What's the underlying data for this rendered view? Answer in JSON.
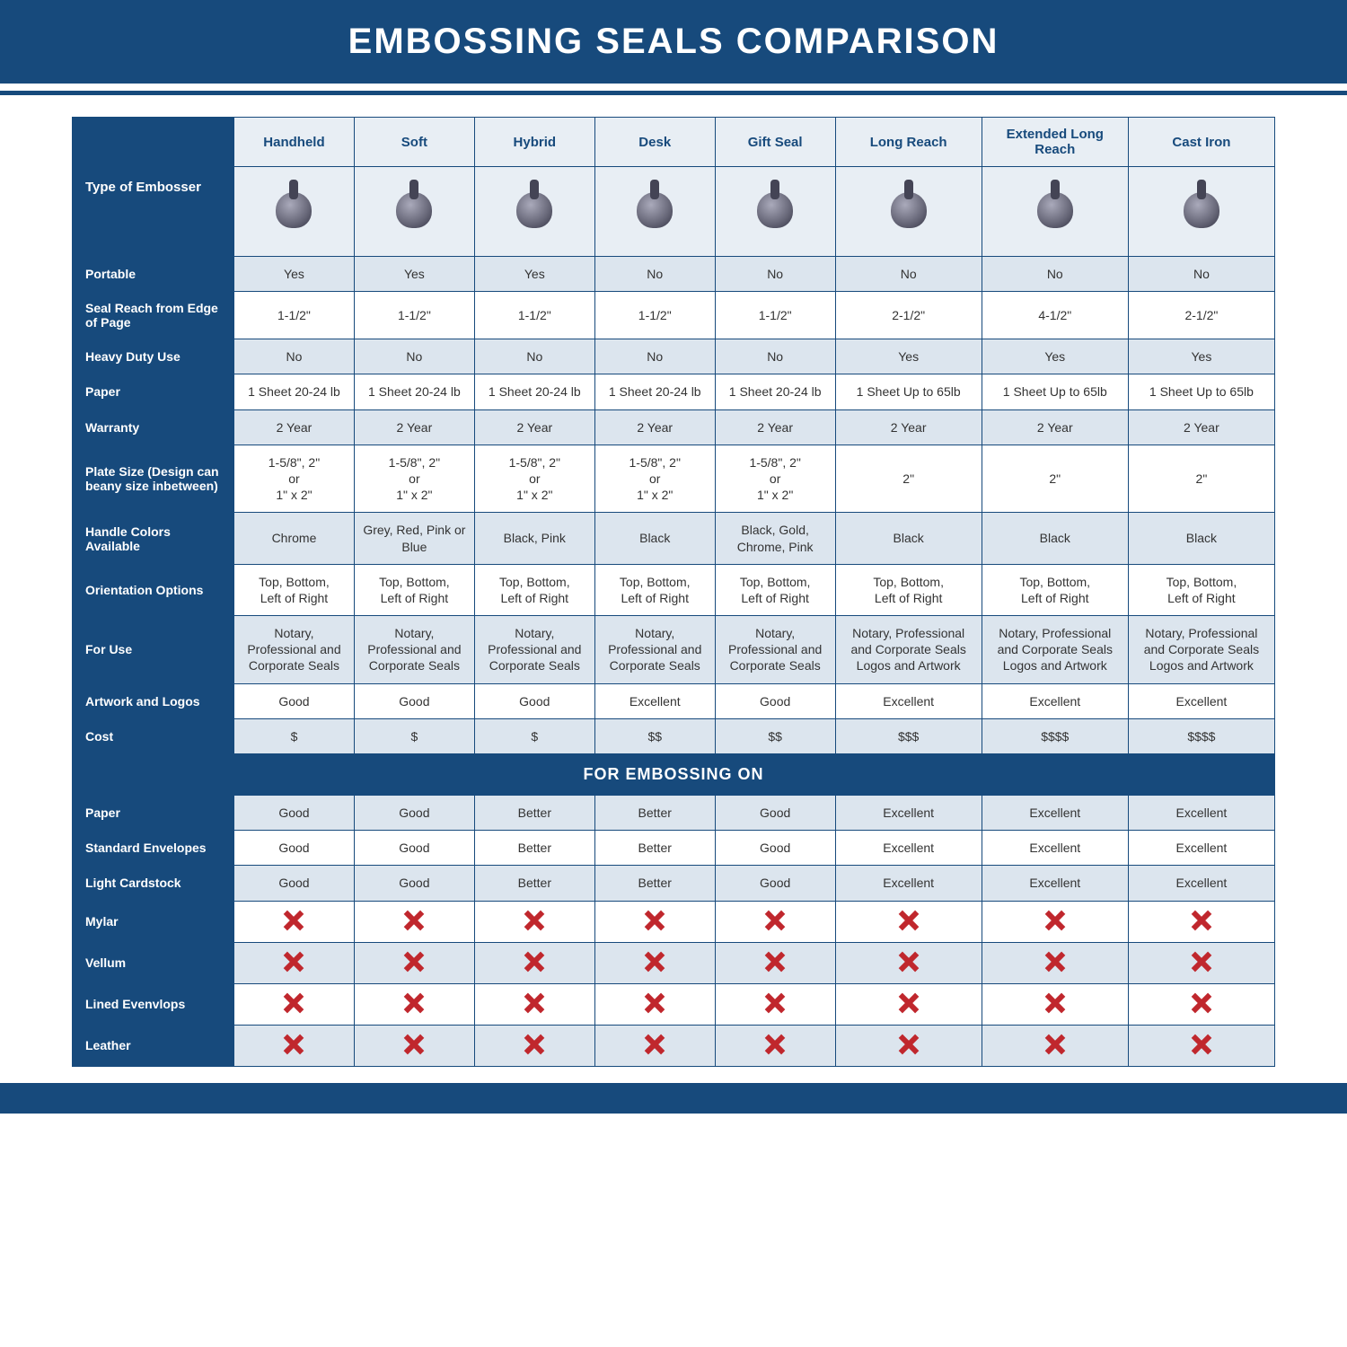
{
  "title": "EMBOSSING SEALS COMPARISON",
  "section_header": "FOR EMBOSSING ON",
  "colors": {
    "brand": "#174A7C",
    "alt_row": "#dce5ee",
    "light_row": "#e8eef4",
    "x_red": "#c0272d",
    "text": "#333333",
    "white": "#ffffff"
  },
  "columns": [
    "Handheld",
    "Soft",
    "Hybrid",
    "Desk",
    "Gift Seal",
    "Long Reach",
    "Extended Long Reach",
    "Cast Iron"
  ],
  "type_label": "Type of Embosser",
  "spec_rows": [
    {
      "label": "Portable",
      "values": [
        "Yes",
        "Yes",
        "Yes",
        "No",
        "No",
        "No",
        "No",
        "No"
      ],
      "alt": true
    },
    {
      "label": "Seal Reach from Edge of Page",
      "values": [
        "1-1/2\"",
        "1-1/2\"",
        "1-1/2\"",
        "1-1/2\"",
        "1-1/2\"",
        "2-1/2\"",
        "4-1/2\"",
        "2-1/2\""
      ],
      "alt": false
    },
    {
      "label": "Heavy Duty Use",
      "values": [
        "No",
        "No",
        "No",
        "No",
        "No",
        "Yes",
        "Yes",
        "Yes"
      ],
      "alt": true
    },
    {
      "label": "Paper",
      "values": [
        "1 Sheet 20-24 lb",
        "1 Sheet 20-24 lb",
        "1 Sheet 20-24 lb",
        "1 Sheet 20-24 lb",
        "1 Sheet 20-24 lb",
        "1 Sheet Up to 65lb",
        "1 Sheet Up to 65lb",
        "1 Sheet Up to 65lb"
      ],
      "alt": false
    },
    {
      "label": "Warranty",
      "values": [
        "2 Year",
        "2 Year",
        "2 Year",
        "2 Year",
        "2 Year",
        "2 Year",
        "2 Year",
        "2 Year"
      ],
      "alt": true
    },
    {
      "label": "Plate Size (Design can beany size inbetween)",
      "values": [
        "1-5/8\", 2\"\nor\n1\" x 2\"",
        "1-5/8\", 2\"\nor\n1\" x 2\"",
        "1-5/8\", 2\"\nor\n1\" x 2\"",
        "1-5/8\", 2\"\nor\n1\" x 2\"",
        "1-5/8\", 2\"\nor\n1\" x 2\"",
        "2\"",
        "2\"",
        "2\""
      ],
      "alt": false
    },
    {
      "label": "Handle Colors Available",
      "values": [
        "Chrome",
        "Grey, Red, Pink or Blue",
        "Black, Pink",
        "Black",
        "Black, Gold, Chrome, Pink",
        "Black",
        "Black",
        "Black"
      ],
      "alt": true
    },
    {
      "label": "Orientation Options",
      "values": [
        "Top, Bottom,\nLeft of Right",
        "Top, Bottom,\nLeft of Right",
        "Top, Bottom,\nLeft of Right",
        "Top, Bottom,\nLeft of Right",
        "Top, Bottom,\nLeft of Right",
        "Top, Bottom,\nLeft of Right",
        "Top, Bottom,\nLeft of Right",
        "Top, Bottom,\nLeft of Right"
      ],
      "alt": false
    },
    {
      "label": "For Use",
      "values": [
        "Notary, Professional and Corporate Seals",
        "Notary, Professional and Corporate Seals",
        "Notary, Professional and Corporate Seals",
        "Notary, Professional and Corporate Seals",
        "Notary, Professional and Corporate Seals",
        "Notary, Professional and Corporate Seals Logos and Artwork",
        "Notary, Professional and Corporate Seals Logos and Artwork",
        "Notary, Professional and Corporate Seals Logos and Artwork"
      ],
      "alt": true
    },
    {
      "label": "Artwork and Logos",
      "values": [
        "Good",
        "Good",
        "Good",
        "Excellent",
        "Good",
        "Excellent",
        "Excellent",
        "Excellent"
      ],
      "alt": false
    },
    {
      "label": "Cost",
      "values": [
        "$",
        "$",
        "$",
        "$$",
        "$$",
        "$$$",
        "$$$$",
        "$$$$"
      ],
      "alt": true
    }
  ],
  "emboss_rows": [
    {
      "label": "Paper",
      "values": [
        "Good",
        "Good",
        "Better",
        "Better",
        "Good",
        "Excellent",
        "Excellent",
        "Excellent"
      ],
      "alt": true
    },
    {
      "label": "Standard Envelopes",
      "values": [
        "Good",
        "Good",
        "Better",
        "Better",
        "Good",
        "Excellent",
        "Excellent",
        "Excellent"
      ],
      "alt": false
    },
    {
      "label": "Light Cardstock",
      "values": [
        "Good",
        "Good",
        "Better",
        "Better",
        "Good",
        "Excellent",
        "Excellent",
        "Excellent"
      ],
      "alt": true
    },
    {
      "label": "Mylar",
      "values": [
        "X",
        "X",
        "X",
        "X",
        "X",
        "X",
        "X",
        "X"
      ],
      "alt": false
    },
    {
      "label": "Vellum",
      "values": [
        "X",
        "X",
        "X",
        "X",
        "X",
        "X",
        "X",
        "X"
      ],
      "alt": true
    },
    {
      "label": "Lined Evenvlops",
      "values": [
        "X",
        "X",
        "X",
        "X",
        "X",
        "X",
        "X",
        "X"
      ],
      "alt": false
    },
    {
      "label": "Leather",
      "values": [
        "X",
        "X",
        "X",
        "X",
        "X",
        "X",
        "X",
        "X"
      ],
      "alt": true
    }
  ]
}
